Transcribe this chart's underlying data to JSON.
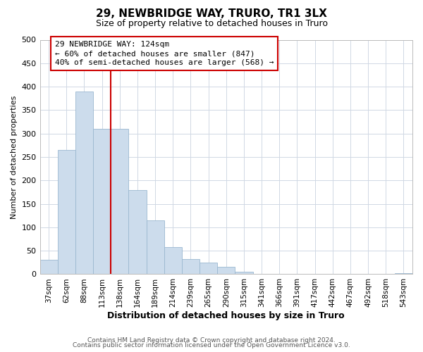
{
  "title": "29, NEWBRIDGE WAY, TRURO, TR1 3LX",
  "subtitle": "Size of property relative to detached houses in Truro",
  "xlabel": "Distribution of detached houses by size in Truro",
  "ylabel": "Number of detached properties",
  "categories": [
    "37sqm",
    "62sqm",
    "88sqm",
    "113sqm",
    "138sqm",
    "164sqm",
    "189sqm",
    "214sqm",
    "239sqm",
    "265sqm",
    "290sqm",
    "315sqm",
    "341sqm",
    "366sqm",
    "391sqm",
    "417sqm",
    "442sqm",
    "467sqm",
    "492sqm",
    "518sqm",
    "543sqm"
  ],
  "values": [
    30,
    265,
    390,
    310,
    310,
    180,
    115,
    58,
    32,
    25,
    15,
    5,
    0,
    0,
    0,
    0,
    0,
    0,
    0,
    0,
    2
  ],
  "bar_color": "#ccdcec",
  "bar_edgecolor": "#9ab8d0",
  "vline_pos": 3.5,
  "vline_color": "#cc0000",
  "annotation_line1": "29 NEWBRIDGE WAY: 124sqm",
  "annotation_line2": "← 60% of detached houses are smaller (847)",
  "annotation_line3": "40% of semi-detached houses are larger (568) →",
  "annotation_box_color": "#cc0000",
  "annotation_bg": "white",
  "ylim": [
    0,
    500
  ],
  "yticks": [
    0,
    50,
    100,
    150,
    200,
    250,
    300,
    350,
    400,
    450,
    500
  ],
  "footer1": "Contains HM Land Registry data © Crown copyright and database right 2024.",
  "footer2": "Contains public sector information licensed under the Open Government Licence v3.0.",
  "bg_color": "white",
  "plot_bg": "white",
  "grid_color": "#d0d8e4"
}
